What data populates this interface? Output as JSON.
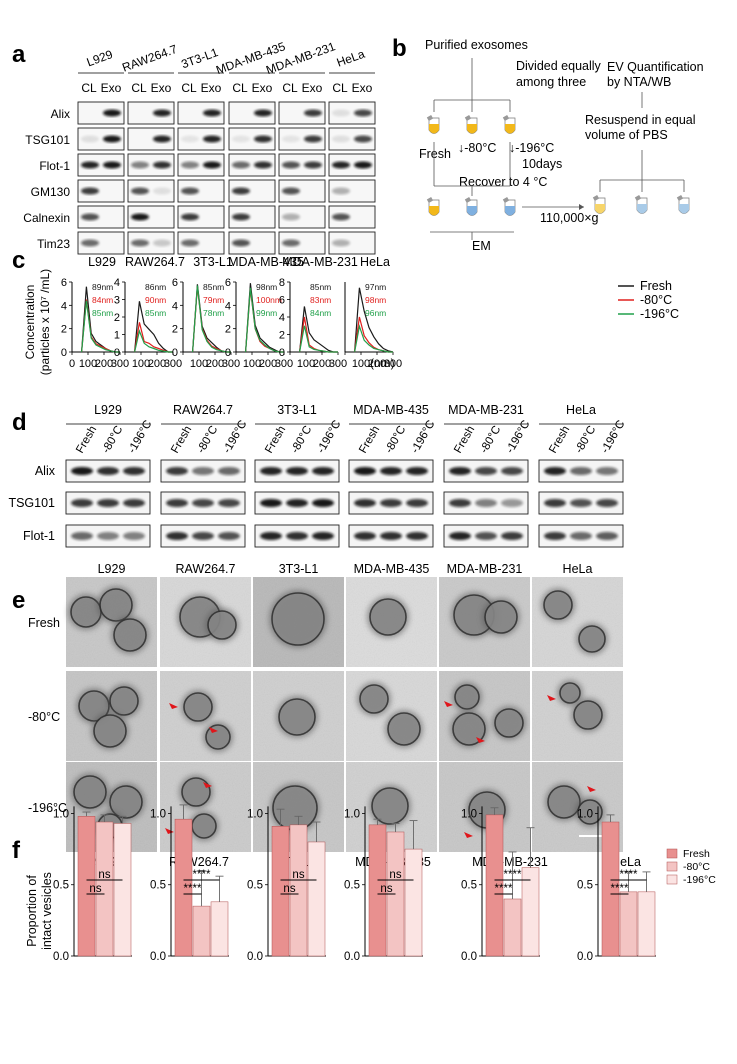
{
  "panel_labels": [
    "a",
    "b",
    "c",
    "d",
    "e",
    "f"
  ],
  "panel_a": {
    "cell_lines": [
      "L929",
      "RAW264.7",
      "3T3-L1",
      "MDA-MB-435",
      "MDA-MB-231",
      "HeLa"
    ],
    "lane_labels": [
      "CL",
      "Exo"
    ],
    "proteins": [
      "Alix",
      "TSG101",
      "Flot-1",
      "GM130",
      "Calnexin",
      "Tim23"
    ]
  },
  "panel_b": {
    "purified": "Purified exosomes",
    "divided": [
      "Divided equally",
      "among three"
    ],
    "fresh": "Fresh",
    "minus80": "-80°C",
    "minus196": "-196°C",
    "days": "10days",
    "recover": "Recover to 4 °C",
    "em": "EM",
    "speed": "110,000×g",
    "resuspend": [
      "Resuspend in equal",
      "volume of PBS"
    ],
    "quant": [
      "EV Quantification",
      "by NTA/WB"
    ]
  },
  "panel_c": {
    "ylabel": [
      "Concentration",
      "(particles x 10⁷ /mL)"
    ],
    "xunit": "(nm)",
    "legend": [
      "Fresh",
      "-80°C",
      "-196°C"
    ],
    "colors": [
      "#1a1a1a",
      "#e0201e",
      "#21a04a"
    ]
  },
  "panel_d": {
    "cell_lines": [
      "L929",
      "RAW264.7",
      "3T3-L1",
      "MDA-MB-435",
      "MDA-MB-231",
      "HeLa"
    ],
    "conditions": [
      "Fresh",
      "-80°C",
      "-196°C"
    ],
    "proteins": [
      "Alix",
      "TSG101",
      "Flot-1"
    ]
  },
  "panel_e": {
    "cell_lines": [
      "L929",
      "RAW264.7",
      "3T3-L1",
      "MDA-MB-435",
      "MDA-MB-231",
      "HeLa"
    ],
    "rows": [
      "Fresh",
      "-80°C",
      "-196°C"
    ]
  },
  "panel_f": {
    "ylabel": [
      "Proportion of",
      "intact vesicles"
    ],
    "legend": [
      "Fresh",
      "-80°C",
      "-196°C"
    ],
    "colors": [
      "#e8908f",
      "#f3c4c3",
      "#fbe4e3"
    ],
    "sig_ns": "ns",
    "sig_star": "****"
  },
  "chart_data": [
    {
      "type": "line",
      "title": "L929",
      "x": [
        60,
        90,
        120,
        150,
        180,
        210,
        240,
        270,
        300
      ],
      "xlim": [
        0,
        300
      ],
      "ylim": [
        0,
        6
      ],
      "yticks": [
        0,
        2,
        4,
        6
      ],
      "series": [
        {
          "name": "Fresh",
          "peak_label": "89nm",
          "values": [
            0,
            5.6,
            1.6,
            0.9,
            0.6,
            0.3,
            0.1,
            0,
            0
          ]
        },
        {
          "name": "-80°C",
          "peak_label": "84nm",
          "values": [
            0,
            4.5,
            1.3,
            0.7,
            0.5,
            0.3,
            0.1,
            0,
            0
          ]
        },
        {
          "name": "-196°C",
          "peak_label": "85nm",
          "values": [
            0,
            4.4,
            1.2,
            0.6,
            0.4,
            0.2,
            0.1,
            0,
            0
          ]
        }
      ]
    },
    {
      "type": "line",
      "title": "RAW264.7",
      "x": [
        60,
        90,
        120,
        150,
        180,
        210,
        240,
        270,
        300
      ],
      "xlim": [
        0,
        300
      ],
      "ylim": [
        0,
        4
      ],
      "yticks": [
        0,
        1,
        2,
        3,
        4
      ],
      "series": [
        {
          "name": "Fresh",
          "peak_label": "86nm",
          "values": [
            0,
            2.9,
            1.6,
            1.3,
            1.0,
            0.5,
            0.2,
            0,
            0
          ]
        },
        {
          "name": "-80°C",
          "peak_label": "90nm",
          "values": [
            0,
            1.7,
            0.6,
            0.5,
            0.3,
            0.2,
            0.1,
            0,
            0
          ]
        },
        {
          "name": "-196°C",
          "peak_label": "85nm",
          "values": [
            0,
            1.2,
            0.5,
            0.3,
            0.2,
            0.1,
            0.05,
            0,
            0
          ]
        }
      ]
    },
    {
      "type": "line",
      "title": "3T3-L1",
      "x": [
        60,
        90,
        120,
        150,
        180,
        210,
        240,
        270,
        300
      ],
      "xlim": [
        0,
        300
      ],
      "ylim": [
        0,
        6
      ],
      "yticks": [
        0,
        2,
        4,
        6
      ],
      "series": [
        {
          "name": "Fresh",
          "peak_label": "85nm",
          "values": [
            0,
            5.8,
            2.2,
            1.2,
            0.8,
            0.4,
            0.1,
            0,
            0
          ]
        },
        {
          "name": "-80°C",
          "peak_label": "79nm",
          "values": [
            0,
            5.6,
            2.0,
            1.0,
            0.5,
            0.3,
            0.1,
            0,
            0
          ]
        },
        {
          "name": "-196°C",
          "peak_label": "78nm",
          "values": [
            0,
            5.7,
            1.9,
            0.9,
            0.4,
            0.2,
            0.1,
            0,
            0
          ]
        }
      ]
    },
    {
      "type": "line",
      "title": "MDA-MB-435",
      "x": [
        60,
        90,
        120,
        150,
        180,
        210,
        240,
        270,
        300
      ],
      "xlim": [
        0,
        300
      ],
      "ylim": [
        0,
        6
      ],
      "yticks": [
        0,
        2,
        4,
        6
      ],
      "series": [
        {
          "name": "Fresh",
          "peak_label": "98nm",
          "values": [
            0,
            5.9,
            2.3,
            1.2,
            0.8,
            0.4,
            0.2,
            0,
            0
          ]
        },
        {
          "name": "-80°C",
          "peak_label": "100nm",
          "values": [
            0,
            5.4,
            2.0,
            0.9,
            0.5,
            0.3,
            0.1,
            0,
            0
          ]
        },
        {
          "name": "-196°C",
          "peak_label": "99nm",
          "values": [
            0,
            5.5,
            2.0,
            1.0,
            0.6,
            0.3,
            0.1,
            0,
            0
          ]
        }
      ]
    },
    {
      "type": "line",
      "title": "MDA-MB-231",
      "x": [
        60,
        90,
        120,
        150,
        180,
        210,
        240,
        270,
        300
      ],
      "xlim": [
        0,
        300
      ],
      "ylim": [
        0,
        8
      ],
      "yticks": [
        0,
        2,
        4,
        6,
        8
      ],
      "series": [
        {
          "name": "Fresh",
          "peak_label": "85nm",
          "values": [
            0,
            5.2,
            2.2,
            1.4,
            1.0,
            0.6,
            0.2,
            0,
            0
          ]
        },
        {
          "name": "-80°C",
          "peak_label": "83nm",
          "values": [
            0,
            4.0,
            0.8,
            0.4,
            0.2,
            0.1,
            0,
            0,
            0
          ]
        },
        {
          "name": "-196°C",
          "peak_label": "84nm",
          "values": [
            0,
            3.0,
            0.6,
            0.3,
            0.2,
            0.1,
            0,
            0,
            0
          ]
        }
      ]
    },
    {
      "type": "line",
      "title": "HeLa",
      "x": [
        60,
        90,
        120,
        150,
        180,
        210,
        240,
        270,
        300
      ],
      "xlim": [
        0,
        300
      ],
      "ylim": [
        0,
        6
      ],
      "yticks": [],
      "series": [
        {
          "name": "Fresh",
          "peak_label": "97nm",
          "values": [
            0,
            5.5,
            3.5,
            2.1,
            1.3,
            0.7,
            0.3,
            0.1,
            0
          ]
        },
        {
          "name": "-80°C",
          "peak_label": "98nm",
          "values": [
            0,
            3.0,
            1.4,
            0.8,
            0.4,
            0.2,
            0.1,
            0,
            0
          ]
        },
        {
          "name": "-196°C",
          "peak_label": "96nm",
          "values": [
            0,
            2.2,
            1.0,
            0.6,
            0.3,
            0.2,
            0.1,
            0,
            0
          ]
        }
      ]
    },
    {
      "type": "bar",
      "title": "L929",
      "categories": [
        "Fresh",
        "-80°C",
        "-196°C"
      ],
      "values": [
        0.98,
        0.94,
        0.93
      ],
      "errors": [
        0.03,
        0.05,
        0.05
      ],
      "ylim": [
        0,
        1.1
      ],
      "yticks": [
        0,
        0.5,
        1.0
      ],
      "sig": [
        "ns",
        "ns"
      ]
    },
    {
      "type": "bar",
      "title": "RAW264.7",
      "categories": [
        "Fresh",
        "-80°C",
        "-196°C"
      ],
      "values": [
        0.96,
        0.35,
        0.38
      ],
      "errors": [
        0.1,
        0.25,
        0.18
      ],
      "ylim": [
        0,
        1.1
      ],
      "yticks": [
        0,
        0.5,
        1.0
      ],
      "sig": [
        "****",
        "****"
      ]
    },
    {
      "type": "bar",
      "title": "3T3-L1",
      "categories": [
        "Fresh",
        "-80°C",
        "-196°C"
      ],
      "values": [
        0.91,
        0.92,
        0.8
      ],
      "errors": [
        0.12,
        0.06,
        0.14
      ],
      "ylim": [
        0,
        1.1
      ],
      "yticks": [
        0,
        0.5,
        1.0
      ],
      "sig": [
        "ns",
        "ns"
      ]
    },
    {
      "type": "bar",
      "title": "MDA-MB-435",
      "categories": [
        "Fresh",
        "-80°C",
        "-196°C"
      ],
      "values": [
        0.92,
        0.87,
        0.75
      ],
      "errors": [
        0.04,
        0.06,
        0.2
      ],
      "ylim": [
        0,
        1.1
      ],
      "yticks": [
        0,
        0.5,
        1.0
      ],
      "sig": [
        "ns",
        "ns"
      ]
    },
    {
      "type": "bar",
      "title": "MDA-MB-231",
      "categories": [
        "Fresh",
        "-80°C",
        "-196°C"
      ],
      "values": [
        0.99,
        0.4,
        0.62
      ],
      "errors": [
        0.05,
        0.33,
        0.28
      ],
      "ylim": [
        0,
        1.1
      ],
      "yticks": [
        0,
        0.5,
        1.0
      ],
      "sig": [
        "****",
        "****"
      ]
    },
    {
      "type": "bar",
      "title": "HeLa",
      "categories": [
        "Fresh",
        "-80°C",
        "-196°C"
      ],
      "values": [
        0.94,
        0.45,
        0.45
      ],
      "errors": [
        0.05,
        0.14,
        0.14
      ],
      "ylim": [
        0,
        1.1
      ],
      "yticks": [
        0,
        0.5,
        1.0
      ],
      "sig": [
        "****",
        "****"
      ]
    }
  ]
}
